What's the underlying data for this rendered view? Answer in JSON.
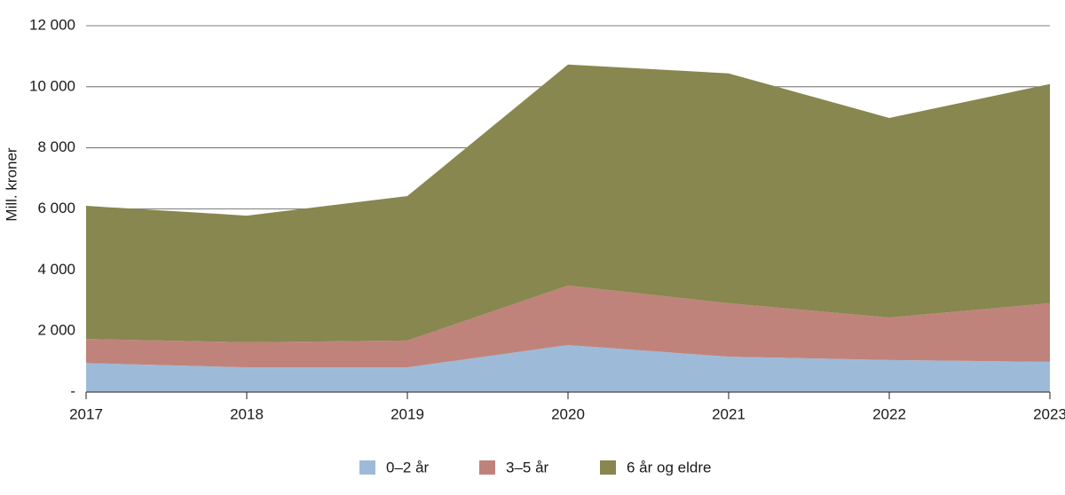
{
  "chart_data": {
    "type": "stacked-area",
    "y_label": "Mill. kroner",
    "categories": [
      "2017",
      "2018",
      "2019",
      "2020",
      "2021",
      "2022",
      "2023"
    ],
    "series": [
      {
        "name": "0–2 år",
        "color": "#9dbbd9",
        "values": [
          950,
          810,
          810,
          1540,
          1160,
          1050,
          990
        ]
      },
      {
        "name": "3–5 år",
        "color": "#c0837b",
        "values": [
          790,
          820,
          880,
          1950,
          1750,
          1390,
          1920
        ]
      },
      {
        "name": "6 år og eldre",
        "color": "#87874f",
        "values": [
          4360,
          4150,
          4730,
          7240,
          7530,
          6540,
          7180
        ]
      }
    ],
    "ylim": [
      0,
      12000
    ],
    "yticks": [
      {
        "value": 0,
        "label": "-"
      },
      {
        "value": 2000,
        "label": "2 000"
      },
      {
        "value": 4000,
        "label": "4 000"
      },
      {
        "value": 6000,
        "label": "6 000"
      },
      {
        "value": 8000,
        "label": "8 000"
      },
      {
        "value": 10000,
        "label": "10 000"
      },
      {
        "value": 12000,
        "label": "12 000"
      }
    ],
    "grid": true,
    "legend": "bottom"
  }
}
